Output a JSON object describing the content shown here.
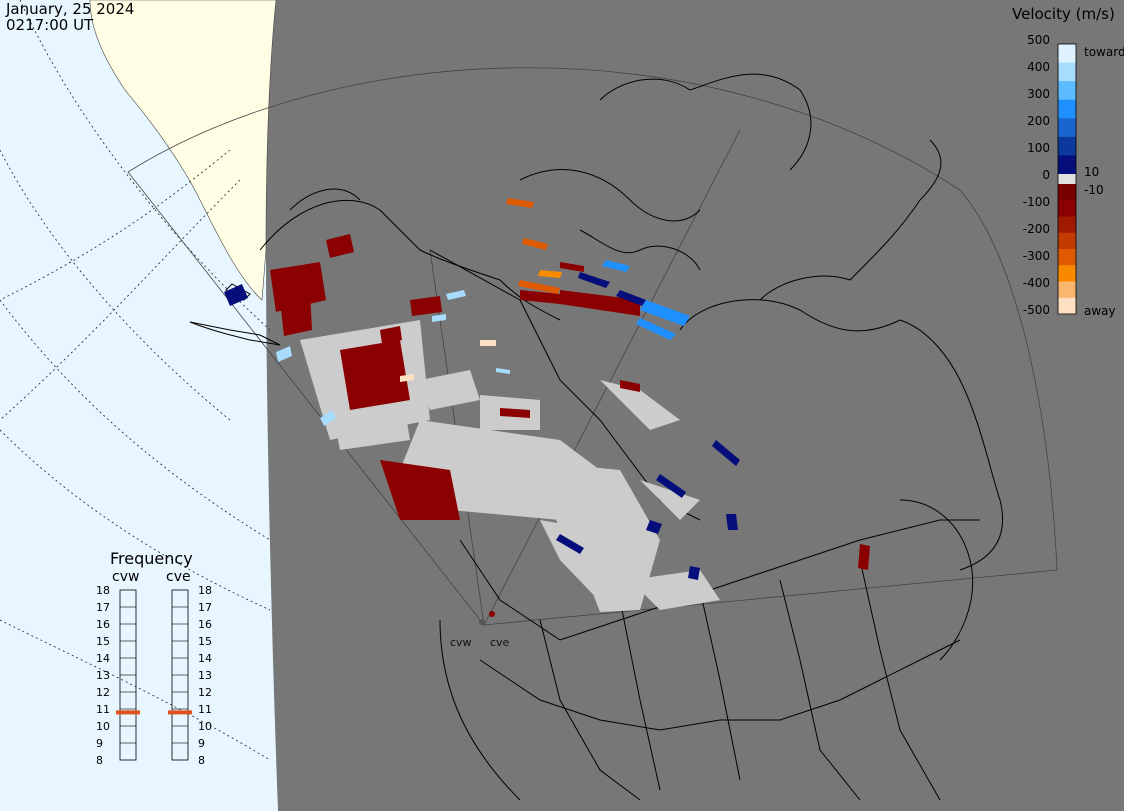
{
  "header": {
    "date": "January, 25 2024",
    "time": "0217:00 UT"
  },
  "colorbar": {
    "title": "Velocity (m/s)",
    "ticks": [
      "500",
      "400",
      "300",
      "200",
      "100",
      "0",
      "-100",
      "-200",
      "-300",
      "-400",
      "-500"
    ],
    "inner_ticks": [
      "10",
      "-10"
    ],
    "end_labels": {
      "top": "toward",
      "bottom": "away"
    },
    "colors_toward": [
      "#dff2ff",
      "#a8dcff",
      "#5cbcff",
      "#1e90ff",
      "#1a66d0",
      "#0b3a9c",
      "#050e7a"
    ],
    "colors_away": [
      "#7a0000",
      "#8b0000",
      "#a01a00",
      "#c23b00",
      "#e05a00",
      "#f98a00",
      "#fbb66e",
      "#fde0c2"
    ]
  },
  "frequency": {
    "title": "Frequency",
    "radars": [
      {
        "name": "cvw",
        "value_mhz": 10.8
      },
      {
        "name": "cve",
        "value_mhz": 10.8
      }
    ],
    "scale": [
      "18",
      "17",
      "16",
      "15",
      "14",
      "13",
      "12",
      "11",
      "10",
      "9",
      "8"
    ],
    "marker_color": "#e0501e"
  },
  "map": {
    "background": "#777777",
    "night_color": "#777777",
    "day_color": "#e8f6ff",
    "ground_scatter_color": "#cccccc",
    "site_labels": [
      "cvw",
      "cve"
    ]
  }
}
